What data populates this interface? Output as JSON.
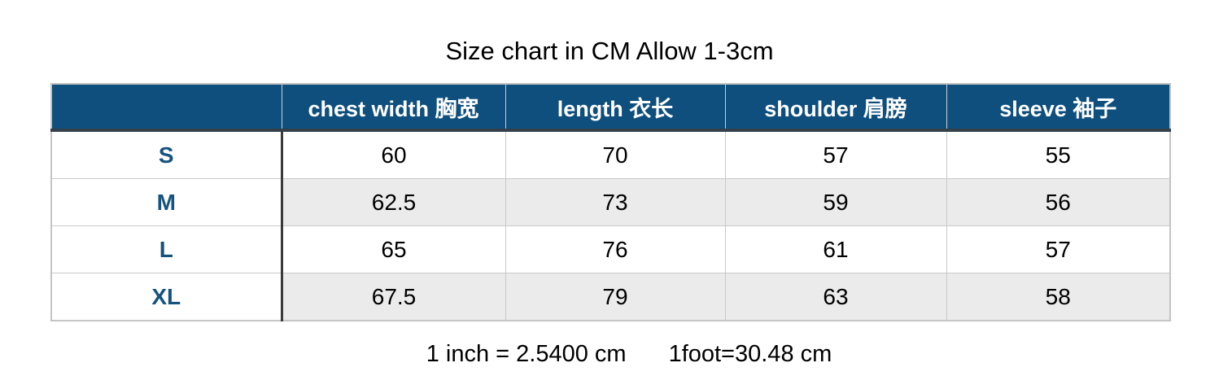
{
  "title": "Size chart in CM Allow 1-3cm",
  "footer": {
    "inch_note": "1 inch = 2.5400 cm",
    "foot_note": "1foot=30.48 cm"
  },
  "colors": {
    "header_bg": "#0E4F7E",
    "header_text": "#FFFFFF",
    "header_underline": "#333F49",
    "size_label_text": "#15537F",
    "row_alt_bg": "#EBEBEB",
    "row_bg": "#FFFFFF",
    "grid_line": "#C9C9C9",
    "outer_border": "#C4C4C4",
    "col_divider_dark": "#3A3A3A",
    "text": "#000000"
  },
  "chart_data": {
    "type": "table",
    "title": "Size chart in CM Allow 1-3cm",
    "units": "cm",
    "tolerance_note": "Allow 1-3cm",
    "columns": [
      "",
      "chest width 胸宽",
      "length 衣长",
      "shoulder 肩膀",
      "sleeve 袖子"
    ],
    "rows": [
      {
        "size": "S",
        "values": [
          60,
          70,
          57,
          55
        ]
      },
      {
        "size": "M",
        "values": [
          62.5,
          73,
          59,
          56
        ]
      },
      {
        "size": "L",
        "values": [
          65,
          76,
          61,
          57
        ]
      },
      {
        "size": "XL",
        "values": [
          67.5,
          79,
          63,
          58
        ]
      }
    ],
    "layout_hints": {
      "zebra_striping": true,
      "header_style": "dark-blue bar with white bold labels",
      "first_column_divider": "dark vertical line"
    },
    "conversions": [
      "1 inch = 2.5400 cm",
      "1foot=30.48 cm"
    ]
  }
}
